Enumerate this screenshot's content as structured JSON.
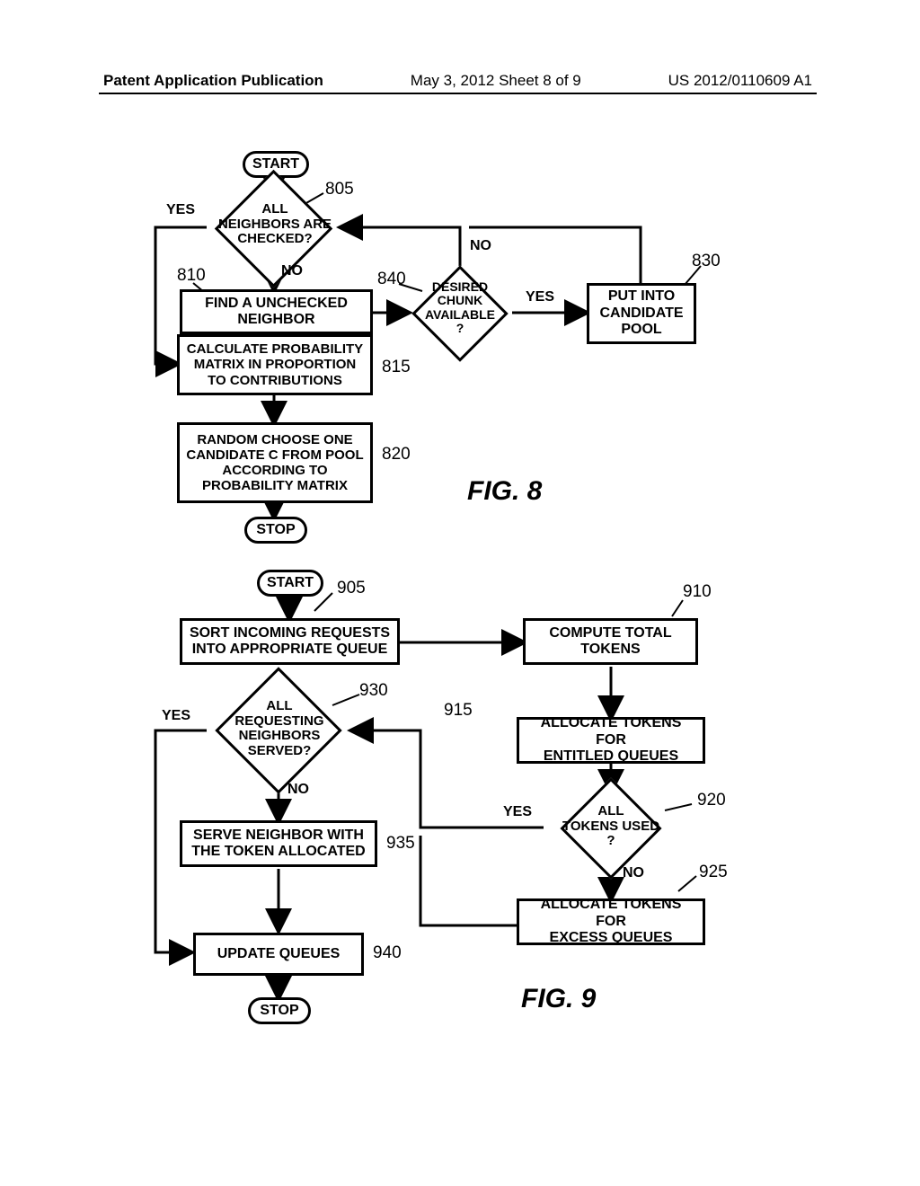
{
  "header": {
    "left": "Patent Application Publication",
    "mid": "May 3, 2012  Sheet 8 of 9",
    "right": "US 2012/0110609 A1"
  },
  "fig8": {
    "start": "START",
    "stop": "STOP",
    "d805": "ALL\nNEIGHBORS ARE\nCHECKED?",
    "yes805": "YES",
    "no805": "NO",
    "b810": "FIND A UNCHECKED\nNEIGHBOR",
    "b815": "CALCULATE PROBABILITY\nMATRIX IN PROPORTION\nTO CONTRIBUTIONS",
    "b820": "RANDOM CHOOSE ONE\nCANDIDATE C FROM POOL\nACCORDING TO\nPROBABILITY MATRIX",
    "d840": "DESIRED\nCHUNK\nAVAILABLE\n?",
    "yes840": "YES",
    "no840": "NO",
    "b830": "PUT INTO\nCANDIDATE\nPOOL",
    "r805": "805",
    "r810": "810",
    "r815": "815",
    "r820": "820",
    "r830": "830",
    "r840": "840",
    "title": "FIG. 8"
  },
  "fig9": {
    "start": "START",
    "stop": "STOP",
    "b905": "SORT INCOMING REQUESTS\nINTO APPROPRIATE QUEUE",
    "b910": "COMPUTE TOTAL\nTOKENS",
    "b915": "ALLOCATE TOKENS FOR\nENTITLED QUEUES",
    "d920": "ALL\nTOKENS USED\n?",
    "yes920": "YES",
    "no920": "NO",
    "b925": "ALLOCATE TOKENS FOR\nEXCESS QUEUES",
    "d930": "ALL\nREQUESTING\nNEIGHBORS\nSERVED?",
    "yes930": "YES",
    "no930": "NO",
    "b935": "SERVE NEIGHBOR WITH\nTHE TOKEN ALLOCATED",
    "b940": "UPDATE QUEUES",
    "r905": "905",
    "r910": "910",
    "r915": "915",
    "r920": "920",
    "r925": "925",
    "r930": "930",
    "r935": "935",
    "r940": "940",
    "title": "FIG. 9"
  },
  "style": {
    "font_family": "Arial, Helvetica, sans-serif",
    "box_font_size": 16,
    "label_font_size": 16,
    "ref_font_size": 19,
    "fig_font_size": 30,
    "line_width": 3,
    "arrow_size": 10,
    "colors": {
      "ink": "#000000",
      "paper": "#ffffff"
    }
  }
}
